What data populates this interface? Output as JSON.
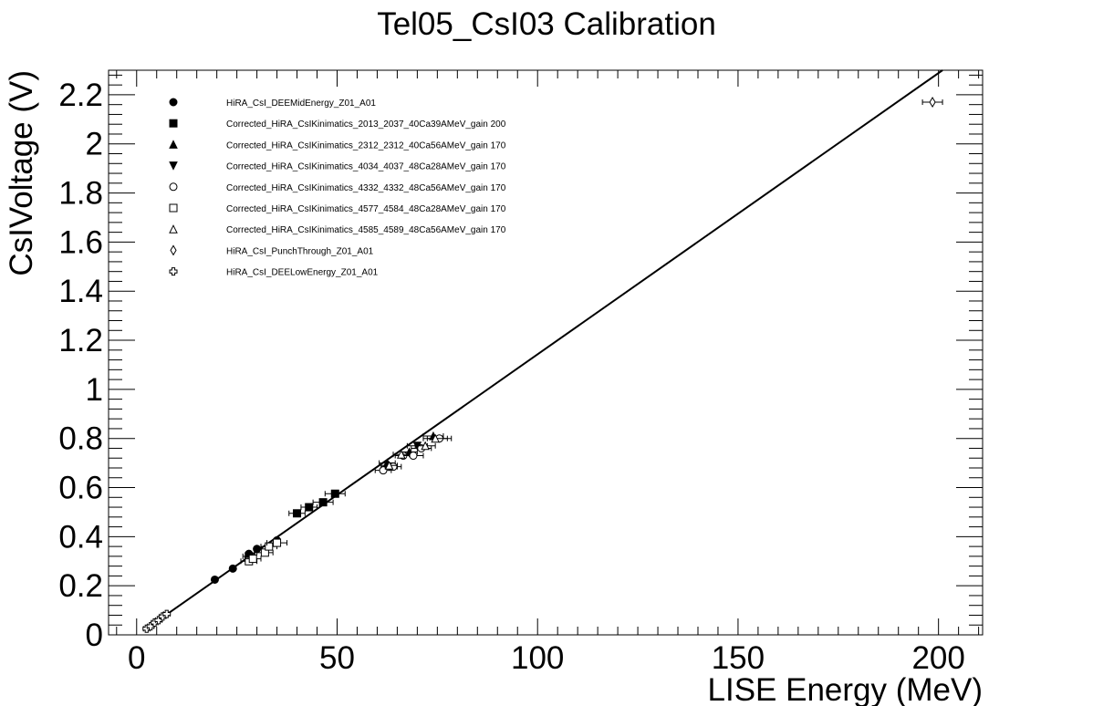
{
  "chart_data": {
    "type": "scatter",
    "title": "Tel05_CsI03 Calibration",
    "xlabel": "LISE Energy (MeV)",
    "ylabel": "CsIVoltage (V)",
    "xlim": [
      -7,
      211
    ],
    "ylim": [
      0,
      2.3
    ],
    "x_ticks": [
      0,
      50,
      100,
      150,
      200
    ],
    "x_tick_labels": [
      "0",
      "50",
      "100",
      "150",
      "200"
    ],
    "y_ticks": [
      0,
      0.2,
      0.4,
      0.6,
      0.8,
      1,
      1.2,
      1.4,
      1.6,
      1.8,
      2,
      2.2
    ],
    "y_tick_labels": [
      "0",
      "0.2",
      "0.4",
      "0.6",
      "0.8",
      "1",
      "1.2",
      "1.4",
      "1.6",
      "1.8",
      "2",
      "2.2"
    ],
    "grid": false,
    "legend_position": "top-left",
    "fit_line": {
      "x": [
        2,
        201
      ],
      "y": [
        0.02,
        2.3
      ]
    },
    "series": [
      {
        "name": "HiRA_CsI_DEEMidEnergy_Z01_A01",
        "marker": "filled-circle",
        "points": [
          [
            19.5,
            0.225,
            0
          ],
          [
            24,
            0.27,
            0
          ],
          [
            28,
            0.33,
            0
          ],
          [
            30,
            0.35,
            0
          ],
          [
            35,
            0.385,
            0
          ]
        ]
      },
      {
        "name": "Corrected_HiRA_CsIKinimatics_2013_2037_40Ca39AMeV_gain 200",
        "marker": "filled-square",
        "points": [
          [
            28,
            0.32,
            1.5
          ],
          [
            40,
            0.495,
            2
          ],
          [
            43,
            0.52,
            2
          ],
          [
            46.5,
            0.54,
            2.5
          ],
          [
            49.5,
            0.575,
            2.5
          ]
        ]
      },
      {
        "name": "Corrected_HiRA_CsIKinimatics_2312_2312_40Ca56AMeV_gain 170",
        "marker": "filled-triangle-up",
        "points": [
          [
            62.5,
            0.7,
            2
          ],
          [
            68,
            0.745,
            2
          ],
          [
            74,
            0.81,
            2.5
          ]
        ]
      },
      {
        "name": "Corrected_HiRA_CsIKinimatics_4034_4037_48Ca28AMeV_gain 170",
        "marker": "filled-triangle-down",
        "points": [
          [
            63,
            0.685,
            2
          ],
          [
            70,
            0.77,
            2.5
          ]
        ]
      },
      {
        "name": "Corrected_HiRA_CsIKinimatics_4332_4332_48Ca56AMeV_gain 170",
        "marker": "open-circle",
        "points": [
          [
            61.5,
            0.67,
            2
          ],
          [
            64,
            0.685,
            2
          ],
          [
            66.5,
            0.73,
            2
          ],
          [
            69,
            0.73,
            2.5
          ],
          [
            71,
            0.76,
            2.5
          ],
          [
            75.5,
            0.8,
            3
          ]
        ]
      },
      {
        "name": "Corrected_HiRA_CsIKinimatics_4577_4584_48Ca28AMeV_gain 170",
        "marker": "open-square",
        "points": [
          [
            28,
            0.3,
            2
          ],
          [
            29,
            0.31,
            2
          ],
          [
            32,
            0.335,
            2
          ],
          [
            33,
            0.36,
            2
          ],
          [
            35,
            0.375,
            2.5
          ]
        ]
      },
      {
        "name": "Corrected_HiRA_CsIKinimatics_4585_4589_48Ca56AMeV_gain 170",
        "marker": "open-triangle-up",
        "points": [
          [
            63,
            0.69,
            2
          ],
          [
            66,
            0.735,
            2
          ],
          [
            72,
            0.77,
            2.5
          ],
          [
            74.5,
            0.8,
            3
          ]
        ]
      },
      {
        "name": "HiRA_CsI_PunchThrough_Z01_A01",
        "marker": "open-diamond",
        "points": [
          [
            198.5,
            2.17,
            2.5
          ]
        ]
      },
      {
        "name": "HiRA_CsI_DEELowEnergy_Z01_A01",
        "marker": "open-cross",
        "points": [
          [
            2.5,
            0.025,
            0.8
          ],
          [
            3.5,
            0.035,
            0.8
          ],
          [
            4.5,
            0.05,
            0.8
          ],
          [
            5.5,
            0.06,
            0.8
          ],
          [
            6.5,
            0.075,
            0.8
          ],
          [
            7.5,
            0.085,
            0.8
          ]
        ]
      }
    ]
  }
}
